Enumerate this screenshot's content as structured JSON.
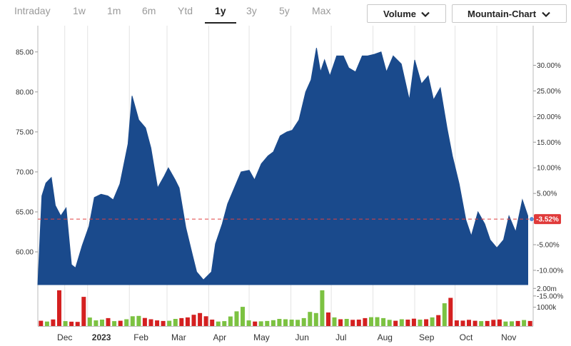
{
  "toolbar": {
    "ranges": [
      "Intraday",
      "1w",
      "1m",
      "6m",
      "Ytd",
      "1y",
      "3y",
      "5y",
      "Max"
    ],
    "active_range": "1y",
    "volume_label": "Volume",
    "chart_type_label": "Mountain-Chart"
  },
  "colors": {
    "area": "#1a4a8c",
    "volume_up": "#7cc242",
    "volume_down": "#d42020",
    "baseline": "#e04040",
    "badge": "#e03a3a"
  },
  "chart_data": {
    "type": "area",
    "title": "",
    "xlabel": "",
    "ylabel": "",
    "x_ticks": [
      "Dec",
      "2023",
      "Feb",
      "Mar",
      "Apr",
      "May",
      "Jun",
      "Jul",
      "Aug",
      "Sep",
      "Oct",
      "Nov"
    ],
    "y_ticks_price": [
      "85.00",
      "80.00",
      "75.00",
      "70.00",
      "65.00",
      "60.00"
    ],
    "y_ticks_percent": [
      "30.00%",
      "25.00%",
      "20.00%",
      "15.00%",
      "10.00%",
      "5.00%",
      "0.00%",
      "-5.00%",
      "-10.00%",
      "-15.00%"
    ],
    "ylim_price": [
      55.9,
      87.3
    ],
    "baseline_price": 64.1,
    "current_change_label": "-3.52%",
    "x": [
      "2022-11-28",
      "2022-12-01",
      "2022-12-05",
      "2022-12-08",
      "2022-12-12",
      "2022-12-16",
      "2022-12-20",
      "2022-12-23",
      "2022-12-28",
      "2023-01-02",
      "2023-01-06",
      "2023-01-11",
      "2023-01-16",
      "2023-01-20",
      "2023-01-25",
      "2023-01-31",
      "2023-02-03",
      "2023-02-08",
      "2023-02-13",
      "2023-02-17",
      "2023-02-22",
      "2023-02-27",
      "2023-03-02",
      "2023-03-07",
      "2023-03-10",
      "2023-03-15",
      "2023-03-20",
      "2023-03-23",
      "2023-03-28",
      "2023-04-03",
      "2023-04-06",
      "2023-04-11",
      "2023-04-15",
      "2023-04-20",
      "2023-04-25",
      "2023-05-01",
      "2023-05-05",
      "2023-05-10",
      "2023-05-15",
      "2023-05-19",
      "2023-05-24",
      "2023-05-29",
      "2023-06-02",
      "2023-06-07",
      "2023-06-12",
      "2023-06-16",
      "2023-06-20",
      "2023-06-23",
      "2023-06-26",
      "2023-06-30",
      "2023-07-05",
      "2023-07-10",
      "2023-07-14",
      "2023-07-19",
      "2023-07-24",
      "2023-07-28",
      "2023-08-02",
      "2023-08-07",
      "2023-08-11",
      "2023-08-16",
      "2023-08-22",
      "2023-08-28",
      "2023-09-01",
      "2023-09-06",
      "2023-09-11",
      "2023-09-15",
      "2023-09-20",
      "2023-09-25",
      "2023-09-29",
      "2023-10-04",
      "2023-10-09",
      "2023-10-13",
      "2023-10-18",
      "2023-10-23",
      "2023-10-27",
      "2023-11-01",
      "2023-11-06",
      "2023-11-10",
      "2023-11-15",
      "2023-11-20",
      "2023-11-24"
    ],
    "series": [
      {
        "values": [
          67.0,
          68.6,
          69.3,
          65.8,
          64.5,
          65.5,
          58.4,
          58.0,
          60.8,
          63.2,
          66.8,
          67.2,
          67.0,
          66.5,
          68.5,
          73.5,
          79.5,
          76.5,
          75.5,
          73.0,
          68.0,
          69.5,
          70.5,
          69.0,
          68.0,
          63.0,
          59.5,
          57.5,
          56.5,
          57.5,
          61.0,
          63.5,
          66.0,
          68.0,
          70.0,
          70.2,
          69.0,
          71.0,
          72.0,
          72.5,
          74.5,
          75.0,
          75.2,
          76.5,
          80.0,
          81.5,
          85.5,
          82.5,
          84.0,
          82.0,
          84.5,
          84.5,
          83.0,
          82.5,
          84.5,
          84.5,
          84.7,
          85.0,
          82.5,
          84.5,
          83.5,
          79.0,
          84.0,
          81.0,
          82.0,
          79.0,
          80.5,
          75.5,
          72.0,
          68.5,
          64.0,
          62.0,
          65.0,
          63.5,
          61.5,
          60.5,
          61.5,
          64.5,
          62.5,
          66.5,
          64.5
        ]
      }
    ],
    "volume_axis_ticks": [
      "2.00m",
      "1000k"
    ],
    "volume": [
      280,
      240,
      350,
      1900,
      260,
      230,
      220,
      1550,
      450,
      300,
      340,
      420,
      260,
      280,
      360,
      520,
      540,
      430,
      360,
      300,
      270,
      280,
      380,
      420,
      460,
      600,
      690,
      520,
      340,
      240,
      260,
      510,
      780,
      1020,
      300,
      240,
      250,
      270,
      310,
      380,
      360,
      340,
      330,
      420,
      750,
      690,
      1900,
      720,
      460,
      360,
      380,
      330,
      340,
      420,
      470,
      470,
      420,
      330,
      280,
      360,
      340,
      390,
      340,
      360,
      460,
      580,
      1210,
      1500,
      300,
      290,
      330,
      280,
      260,
      270,
      330,
      350,
      240,
      250,
      270,
      320,
      270
    ],
    "volume_up": [
      false,
      true,
      false,
      false,
      true,
      false,
      false,
      false,
      true,
      true,
      true,
      false,
      true,
      false,
      true,
      true,
      true,
      false,
      false,
      false,
      false,
      true,
      true,
      false,
      false,
      false,
      false,
      false,
      false,
      true,
      true,
      true,
      true,
      true,
      true,
      false,
      true,
      true,
      true,
      true,
      true,
      true,
      true,
      true,
      true,
      true,
      true,
      false,
      true,
      false,
      true,
      false,
      false,
      false,
      true,
      true,
      true,
      true,
      false,
      true,
      false,
      false,
      true,
      false,
      true,
      false,
      true,
      false,
      false,
      false,
      false,
      false,
      true,
      false,
      false,
      false,
      true,
      true,
      false,
      true,
      false
    ]
  }
}
